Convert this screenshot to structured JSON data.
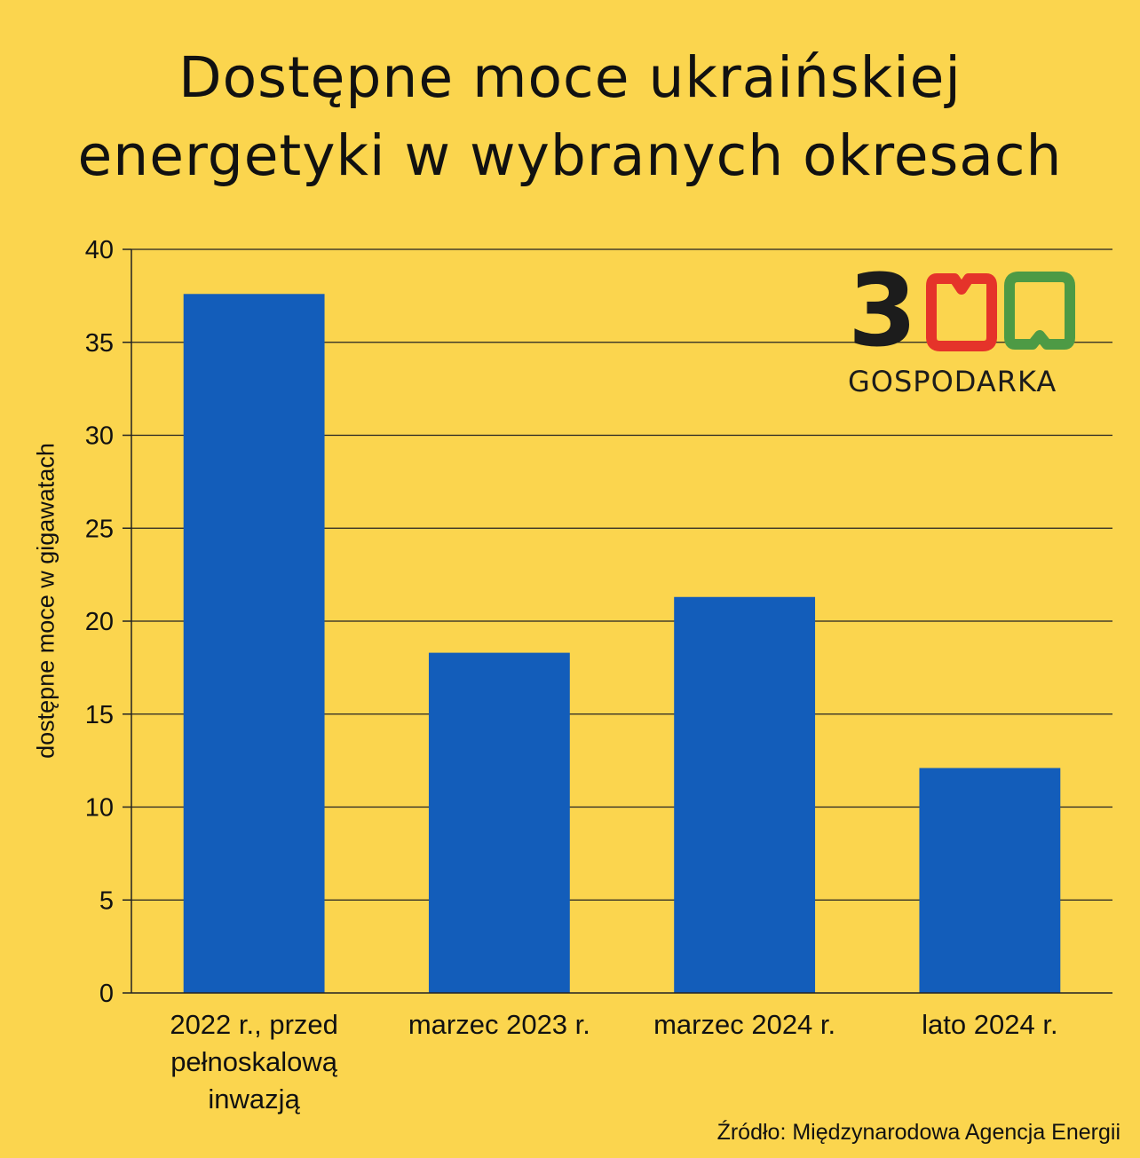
{
  "chart_data": {
    "type": "bar",
    "title": "Dostępne moce ukraińskiej energetyki w wybranych okresach",
    "ylabel": "dostępne moce w gigawatach",
    "xlabel": "",
    "categories": [
      "2022 r., przed pełnoskalową inwazją",
      "marzec 2023 r.",
      "marzec 2024 r.",
      "lato 2024 r."
    ],
    "category_lines": [
      [
        "2022 r., przed",
        "pełnoskalową",
        "inwazją"
      ],
      [
        "marzec 2023 r."
      ],
      [
        "marzec 2024 r."
      ],
      [
        "lato 2024 r."
      ]
    ],
    "values": [
      37.6,
      18.3,
      21.3,
      12.1
    ],
    "ylim": [
      0,
      40
    ],
    "yticks": [
      0,
      5,
      10,
      15,
      20,
      25,
      30,
      35,
      40
    ],
    "grid": true,
    "bar_color": "#135DBA",
    "legend": "none"
  },
  "title_lines": [
    "Dostępne moce ukraińskiej",
    "energetyki w wybranych okresach"
  ],
  "source": "Źródło: Międzynarodowa Agencja Energii",
  "logo": {
    "digit": "3",
    "wordmark": "GOSPODARKA",
    "colors": {
      "three": "#1C1C1C",
      "first_zero": "#E5332A",
      "second_zero": "#4D9A45"
    }
  },
  "background_color": "#FBD54E"
}
